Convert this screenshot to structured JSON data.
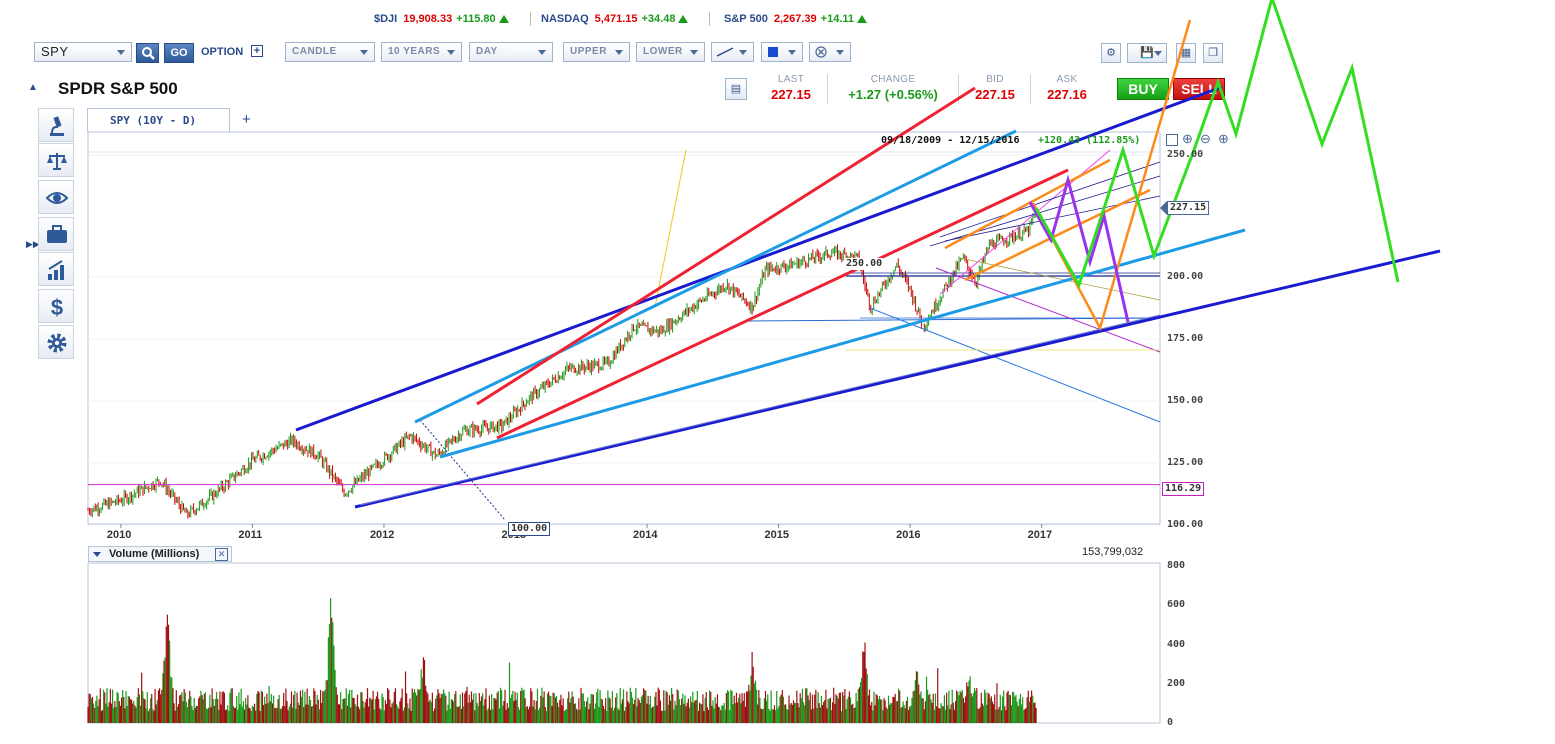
{
  "ticker": [
    {
      "symbol": "$DJI",
      "value": "19,908.33",
      "change": "+115.80"
    },
    {
      "symbol": "NASDAQ",
      "value": "5,471.15",
      "change": "+34.48"
    },
    {
      "symbol": "S&P 500",
      "value": "2,267.39",
      "change": "+14.11"
    }
  ],
  "toolbar": {
    "symbol_value": "SPY",
    "go_label": "GO",
    "option_label": "OPTION",
    "chart_type": "CANDLE",
    "range": "10 YEARS",
    "interval": "DAY",
    "upper": "UPPER",
    "lower": "LOWER"
  },
  "security": {
    "name": "SPDR S&P 500",
    "tab_label": "SPY (10Y - D)",
    "add_tab": "+"
  },
  "quote": {
    "last_label": "LAST",
    "last": "227.15",
    "change_label": "CHANGE",
    "change": "+1.27 (+0.56%)",
    "bid_label": "BID",
    "bid": "227.15",
    "ask_label": "ASK",
    "ask": "227.16",
    "buy_label": "BUY",
    "sell_label": "SELL"
  },
  "chart": {
    "range_text": "09/18/2009 - 12/15/2016",
    "range_change": "+120.43 (112.85%)",
    "last_marker": "227.15",
    "level_marker": "116.29",
    "low_marker": "100.00",
    "mid_marker": "250.00"
  },
  "volume": {
    "title": "Volume (Millions)",
    "latest": "153,799,032"
  },
  "colors": {
    "accent": "#2f5a99",
    "up": "#1a9a1a",
    "down": "#d00000",
    "trend_blue": "#1a1ad0",
    "trend_light": "#1e9be6",
    "trend_red": "#ee2233",
    "projection_green": "#33dd22",
    "projection_purple": "#9933ee",
    "projection_orange": "#ff8a1a"
  },
  "icons": [
    "search-icon",
    "plus-icon",
    "microscope-icon",
    "scale-icon",
    "eye-icon",
    "briefcase-icon",
    "bar-chart-icon",
    "dollar-icon",
    "gear-icon",
    "save-icon",
    "close-icon",
    "settings-icon"
  ],
  "chart_data": {
    "type": "line",
    "title": "",
    "x_ticks": [
      "2010",
      "2011",
      "2012",
      "2013",
      "2014",
      "2015",
      "2016",
      "2017"
    ],
    "y_ticks": [
      "100.00",
      "125.00",
      "150.00",
      "175.00",
      "200.00",
      "250.00"
    ],
    "ylim": [
      100,
      250
    ],
    "series": [
      {
        "x": [
          2009.75,
          2010.0,
          2010.3,
          2010.5,
          2010.7,
          2011.0,
          2011.3,
          2011.5,
          2011.7,
          2011.9,
          2012.2,
          2012.4,
          2012.6,
          2012.9,
          2013.1,
          2013.4,
          2013.7,
          2013.9,
          2014.1,
          2014.4,
          2014.6,
          2014.8,
          2014.9,
          2015.1,
          2015.4,
          2015.6,
          2015.7,
          2015.9,
          2016.0,
          2016.1,
          2016.4,
          2016.5,
          2016.6,
          2016.9,
          2016.96
        ],
        "values": [
          106,
          110,
          118,
          104,
          112,
          126,
          134,
          128,
          113,
          122,
          136,
          128,
          138,
          140,
          151,
          163,
          165,
          180,
          178,
          190,
          197,
          188,
          203,
          205,
          210,
          208,
          188,
          205,
          195,
          180,
          208,
          198,
          213,
          219,
          227.15
        ]
      }
    ],
    "volume_ticks": [
      "0",
      "200",
      "400",
      "600",
      "800"
    ],
    "volume_ylim": [
      0,
      800
    ],
    "volume_peaks": [
      {
        "x": 2010.35,
        "value": 640
      },
      {
        "x": 2011.6,
        "value": 710
      },
      {
        "x": 2012.3,
        "value": 390
      },
      {
        "x": 2014.8,
        "value": 380
      },
      {
        "x": 2015.65,
        "value": 500
      },
      {
        "x": 2016.05,
        "value": 320
      },
      {
        "x": 2016.45,
        "value": 330
      }
    ],
    "horizontal_levels": [
      116.29
    ]
  }
}
